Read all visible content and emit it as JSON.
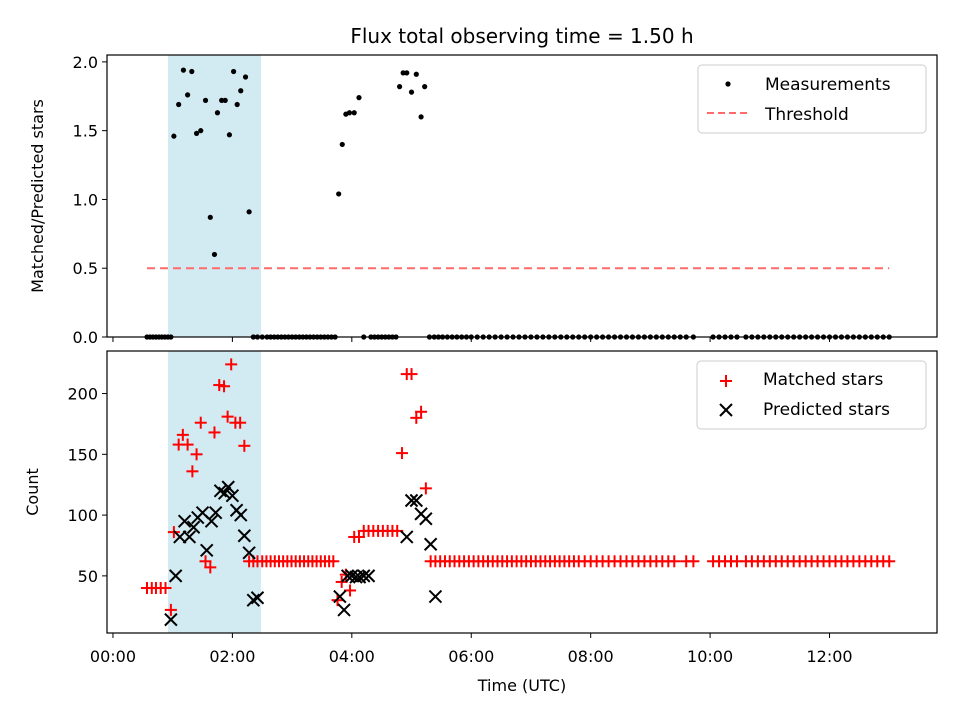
{
  "chart_data": [
    {
      "type": "scatter",
      "title": "Flux total observing time = 1.50 h",
      "xlabel": "",
      "ylabel": "Matched/Predicted stars",
      "xlim": [
        -0.1,
        13.8
      ],
      "ylim": [
        0,
        2.05
      ],
      "yticks": [
        0.0,
        0.5,
        1.0,
        1.5,
        2.0
      ],
      "ytick_labels": [
        "0.0",
        "0.5",
        "1.0",
        "1.5",
        "2.0"
      ],
      "grid": false,
      "legend_position": "top-right",
      "shaded_x_range": [
        0.97,
        2.5
      ],
      "shade_color": "#add8e6",
      "series": [
        {
          "name": "Measurements",
          "kind": "points",
          "color": "#000000",
          "x": [
            0.57,
            0.62,
            0.67,
            0.72,
            0.77,
            0.82,
            0.87,
            0.92,
            0.97,
            1.02,
            1.1,
            1.18,
            1.25,
            1.32,
            1.4,
            1.47,
            1.55,
            1.63,
            1.7,
            1.75,
            1.82,
            1.88,
            1.95,
            2.02,
            2.08,
            2.14,
            2.22,
            2.28,
            2.35,
            2.42,
            2.5,
            2.58,
            2.64,
            2.7,
            2.76,
            2.82,
            2.88,
            2.94,
            3.0,
            3.06,
            3.12,
            3.18,
            3.24,
            3.3,
            3.36,
            3.42,
            3.48,
            3.54,
            3.6,
            3.66,
            3.72,
            3.78,
            3.84,
            3.9,
            3.96,
            4.04,
            4.12,
            4.2,
            4.32,
            4.38,
            4.44,
            4.5,
            4.56,
            4.62,
            4.68,
            4.74,
            4.8,
            4.86,
            4.92,
            5.0,
            5.08,
            5.16,
            5.22,
            5.3,
            5.38,
            5.45,
            5.52,
            5.6,
            5.68,
            5.76,
            5.84,
            5.92,
            6.0,
            6.1,
            6.2,
            6.3,
            6.4,
            6.5,
            6.6,
            6.7,
            6.8,
            6.9,
            7.0,
            7.1,
            7.2,
            7.3,
            7.4,
            7.5,
            7.6,
            7.7,
            7.8,
            7.9,
            8.0,
            8.1,
            8.2,
            8.3,
            8.4,
            8.5,
            8.6,
            8.7,
            8.8,
            8.9,
            9.0,
            9.1,
            9.2,
            9.3,
            9.4,
            9.5,
            9.6,
            9.72,
            10.05,
            10.15,
            10.25,
            10.35,
            10.45,
            10.6,
            10.7,
            10.8,
            10.9,
            11.0,
            11.1,
            11.2,
            11.3,
            11.4,
            11.5,
            11.6,
            11.7,
            11.8,
            11.9,
            12.0,
            12.1,
            12.2,
            12.3,
            12.4,
            12.5,
            12.6,
            12.7,
            12.8,
            12.9,
            13.0
          ],
          "y": [
            0,
            0,
            0,
            0,
            0,
            0,
            0,
            0,
            0,
            1.46,
            1.69,
            1.94,
            1.76,
            1.93,
            1.48,
            1.5,
            1.72,
            0.87,
            0.6,
            1.63,
            1.72,
            1.72,
            1.47,
            1.93,
            1.69,
            1.79,
            1.89,
            0.91,
            0,
            0,
            0,
            0,
            0,
            0,
            0,
            0,
            0,
            0,
            0,
            0,
            0,
            0,
            0,
            0,
            0,
            0,
            0,
            0,
            0,
            0,
            0,
            1.04,
            1.4,
            1.62,
            1.63,
            1.63,
            1.74,
            0,
            0,
            0,
            0,
            0,
            0,
            0,
            0,
            0,
            1.82,
            1.92,
            1.92,
            1.78,
            1.91,
            1.6,
            1.82,
            0,
            0,
            0,
            0,
            0,
            0,
            0,
            0,
            0,
            0,
            0,
            0,
            0,
            0,
            0,
            0,
            0,
            0,
            0,
            0,
            0,
            0,
            0,
            0,
            0,
            0,
            0,
            0,
            0,
            0,
            0,
            0,
            0,
            0,
            0,
            0,
            0,
            0,
            0,
            0,
            0,
            0,
            0,
            0,
            0,
            0,
            0,
            0,
            0,
            0,
            0,
            0,
            0,
            0,
            0,
            0,
            0,
            0,
            0,
            0,
            0,
            0,
            0,
            0,
            0,
            0,
            0,
            0,
            0,
            0,
            0,
            0,
            0,
            0,
            0,
            0,
            0
          ]
        },
        {
          "name": "Threshold",
          "kind": "dashed-line",
          "color": "#ff6b6b",
          "x": [
            0.57,
            13.0
          ],
          "y": [
            0.5,
            0.5
          ]
        }
      ]
    },
    {
      "type": "scatter",
      "title": "",
      "xlabel": "Time (UTC)",
      "ylabel": "Count",
      "xlim": [
        -0.1,
        13.8
      ],
      "ylim": [
        3,
        235
      ],
      "yticks": [
        50,
        100,
        150,
        200
      ],
      "ytick_labels": [
        "50",
        "100",
        "150",
        "200"
      ],
      "xticks": [
        0,
        2,
        4,
        6,
        8,
        10,
        12
      ],
      "xtick_labels": [
        "00:00",
        "02:00",
        "04:00",
        "06:00",
        "08:00",
        "10:00",
        "12:00"
      ],
      "grid": false,
      "legend_position": "top-right",
      "shaded_x_range": [
        0.97,
        2.5
      ],
      "shade_color": "#add8e6",
      "series": [
        {
          "name": "Matched stars",
          "kind": "plus",
          "color": "#ff0000",
          "x": [
            0.57,
            0.65,
            0.72,
            0.8,
            0.88,
            0.97,
            1.02,
            1.1,
            1.17,
            1.25,
            1.33,
            1.4,
            1.47,
            1.55,
            1.63,
            1.7,
            1.78,
            1.86,
            1.92,
            1.98,
            2.05,
            2.13,
            2.2,
            2.28,
            2.35,
            2.42,
            2.5,
            2.57,
            2.64,
            2.71,
            2.78,
            2.85,
            2.92,
            2.99,
            3.06,
            3.13,
            3.2,
            3.27,
            3.34,
            3.41,
            3.48,
            3.55,
            3.62,
            3.69,
            3.76,
            3.83,
            3.9,
            3.97,
            4.04,
            4.12,
            4.2,
            4.28,
            4.36,
            4.44,
            4.52,
            4.6,
            4.68,
            4.76,
            4.84,
            4.92,
            5.0,
            5.08,
            5.16,
            5.24,
            5.32,
            5.4,
            5.48,
            5.56,
            5.64,
            5.72,
            5.8,
            5.88,
            5.96,
            6.04,
            6.12,
            6.2,
            6.28,
            6.36,
            6.44,
            6.52,
            6.6,
            6.68,
            6.76,
            6.84,
            6.92,
            7.0,
            7.08,
            7.16,
            7.24,
            7.32,
            7.4,
            7.48,
            7.56,
            7.64,
            7.72,
            7.8,
            7.9,
            8.0,
            8.1,
            8.2,
            8.3,
            8.4,
            8.5,
            8.6,
            8.7,
            8.8,
            8.9,
            9.0,
            9.1,
            9.2,
            9.3,
            9.4,
            9.6,
            9.72,
            10.05,
            10.15,
            10.25,
            10.35,
            10.45,
            10.6,
            10.7,
            10.8,
            10.9,
            11.0,
            11.1,
            11.2,
            11.3,
            11.4,
            11.5,
            11.6,
            11.7,
            11.8,
            11.9,
            12.0,
            12.1,
            12.2,
            12.3,
            12.4,
            12.5,
            12.6,
            12.7,
            12.8,
            12.9,
            13.0
          ],
          "y": [
            40,
            40,
            40,
            40,
            40,
            22,
            86,
            158,
            166,
            158,
            136,
            150,
            176,
            62,
            57,
            168,
            207,
            206,
            181,
            224,
            176,
            176,
            157,
            62,
            62,
            62,
            62,
            62,
            62,
            62,
            62,
            62,
            62,
            62,
            62,
            62,
            62,
            62,
            62,
            62,
            62,
            62,
            62,
            62,
            30,
            45,
            51,
            38,
            82,
            82,
            87,
            87,
            87,
            87,
            87,
            87,
            87,
            87,
            151,
            216,
            216,
            180,
            185,
            122,
            62,
            62,
            62,
            62,
            62,
            62,
            62,
            62,
            62,
            62,
            62,
            62,
            62,
            62,
            62,
            62,
            62,
            62,
            62,
            62,
            62,
            62,
            62,
            62,
            62,
            62,
            62,
            62,
            62,
            62,
            62,
            62,
            62,
            62,
            62,
            62,
            62,
            62,
            62,
            62,
            62,
            62,
            62,
            62,
            62,
            62,
            62,
            62,
            62,
            62,
            62,
            62,
            62,
            62,
            62,
            62,
            62,
            62,
            62,
            62,
            62,
            62,
            62,
            62,
            62,
            62,
            62,
            62,
            62,
            62,
            62,
            62,
            62,
            62,
            62,
            62,
            62,
            62,
            62,
            62
          ]
        },
        {
          "name": "Predicted stars",
          "kind": "x",
          "color": "#000000",
          "x": [
            0.97,
            1.05,
            1.12,
            1.2,
            1.28,
            1.35,
            1.42,
            1.5,
            1.57,
            1.65,
            1.72,
            1.8,
            1.87,
            1.93,
            2.0,
            2.07,
            2.14,
            2.2,
            2.28,
            2.35,
            2.42,
            3.8,
            3.87,
            3.93,
            4.0,
            4.07,
            4.13,
            4.2,
            4.28,
            4.92,
            5.0,
            5.08,
            5.16,
            5.24,
            5.32,
            5.4
          ],
          "y": [
            14,
            50,
            82,
            95,
            82,
            90,
            98,
            102,
            71,
            95,
            102,
            120,
            118,
            123,
            116,
            104,
            100,
            83,
            69,
            30,
            32,
            33,
            22,
            50,
            50,
            49,
            49,
            50,
            50,
            82,
            112,
            112,
            101,
            97,
            76,
            33
          ]
        }
      ]
    }
  ]
}
